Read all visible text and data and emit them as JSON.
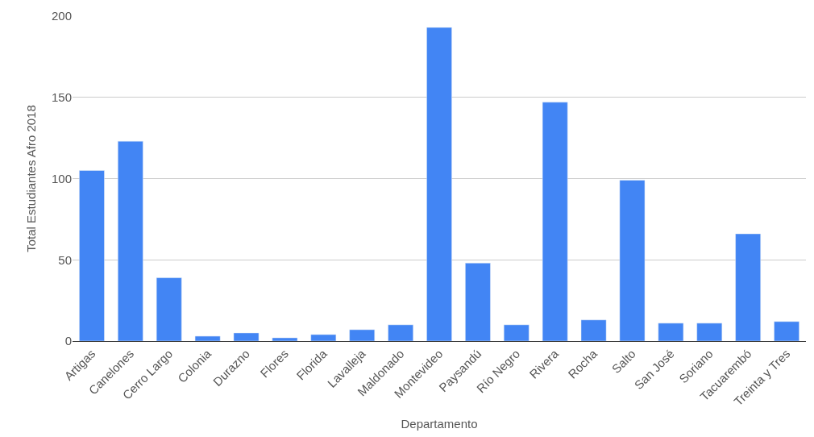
{
  "chart_data": {
    "type": "bar",
    "xlabel": "Departamento",
    "ylabel": "Total Estudiantes Afro 2018",
    "categories": [
      "Artigas",
      "Canelones",
      "Cerro Largo",
      "Colonia",
      "Durazno",
      "Flores",
      "Florida",
      "Lavalleja",
      "Maldonado",
      "Montevideo",
      "Paysandú",
      "Río Negro",
      "Rivera",
      "Rocha",
      "Salto",
      "San José",
      "Soriano",
      "Tacuarembó",
      "Treinta y Tres"
    ],
    "values": [
      105,
      123,
      39,
      3,
      5,
      2,
      4,
      7,
      10,
      193,
      48,
      10,
      147,
      13,
      99,
      11,
      11,
      66,
      12
    ],
    "color": "#4285f4",
    "ylim": [
      0,
      200
    ],
    "yticks": [
      0,
      50,
      100,
      150,
      200
    ],
    "grid": "y"
  }
}
